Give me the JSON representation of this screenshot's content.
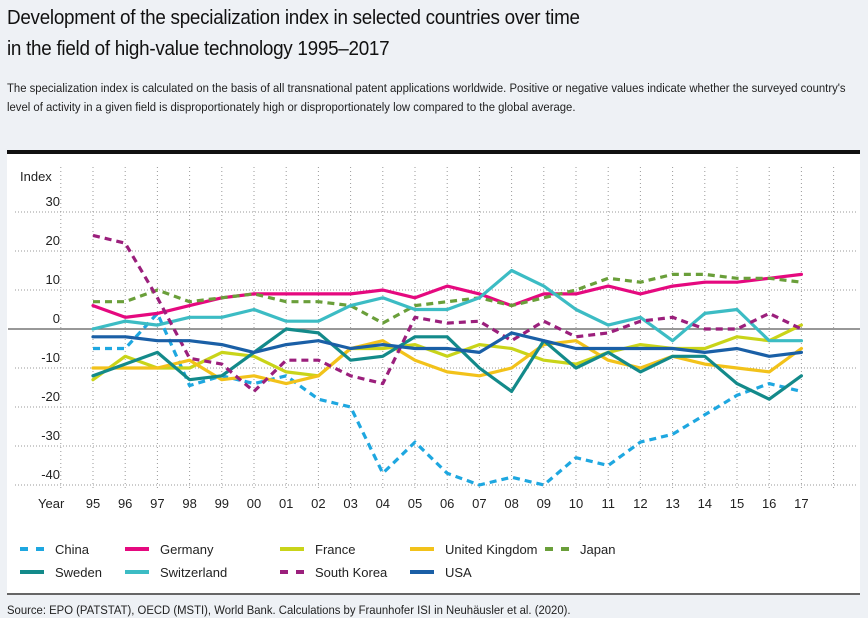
{
  "header": {
    "title_line1": "Development of the specialization index in selected countries over time",
    "title_line2": "in the field of high-value technology 1995–2017",
    "description": "The specialization index is calculated on the basis of all transnational patent applications worldwide. Positive or negative values indicate whether the surveyed country's level of activity in a given field is disproportionately high or disproportionately low compared to the global average."
  },
  "source": "Source: EPO (PATSTAT), OECD (MSTI), World Bank. Calculations by Fraunhofer ISI in Neuhäusler et al. (2020).",
  "chart_data": {
    "type": "line",
    "title": "Development of the specialization index in selected countries over time in the field of high-value technology 1995–2017",
    "xlabel": "Year",
    "ylabel": "Index",
    "x": [
      "95",
      "96",
      "97",
      "98",
      "99",
      "00",
      "01",
      "02",
      "03",
      "04",
      "05",
      "06",
      "07",
      "08",
      "09",
      "10",
      "11",
      "12",
      "13",
      "14",
      "15",
      "16",
      "17"
    ],
    "yticks": [
      30,
      20,
      10,
      0,
      -10,
      -20,
      -30,
      -40
    ],
    "ylim": [
      -40,
      30
    ],
    "grid": true,
    "legend_position": "bottom",
    "series": [
      {
        "name": "China",
        "color": "#1ea7e0",
        "dashed": true,
        "values": [
          -5,
          -5,
          4,
          -14.5,
          -12,
          -14,
          -12,
          -18,
          -20,
          -37,
          -29,
          -37,
          -40,
          -38,
          -40,
          -33,
          -35,
          -29,
          -27,
          -22,
          -17,
          -14,
          -16
        ]
      },
      {
        "name": "Germany",
        "color": "#e5097f",
        "dashed": false,
        "values": [
          6,
          3,
          4,
          6,
          8,
          9,
          9,
          9,
          9,
          10,
          8,
          11,
          9,
          6,
          9,
          9,
          11,
          9,
          11,
          12,
          12,
          13,
          14
        ]
      },
      {
        "name": "France",
        "color": "#c9d419",
        "dashed": false,
        "values": [
          -13,
          -7,
          -10,
          -10,
          -6,
          -7,
          -11,
          -12,
          -5,
          -5,
          -4,
          -7,
          -4,
          -5,
          -8,
          -9,
          -6,
          -4,
          -5,
          -5,
          -2,
          -3,
          1
        ]
      },
      {
        "name": "United Kingdom",
        "color": "#f2c21a",
        "dashed": false,
        "values": [
          -10,
          -10,
          -10,
          -8,
          -13,
          -12,
          -14,
          -12,
          -5,
          -3,
          -8,
          -11,
          -12,
          -10,
          -4,
          -3,
          -8,
          -10,
          -7,
          -9,
          -10,
          -11,
          -5
        ]
      },
      {
        "name": "Japan",
        "color": "#6a9f3a",
        "dashed": true,
        "values": [
          7,
          7,
          10,
          7,
          8,
          9,
          7,
          7,
          6,
          1.5,
          6,
          7,
          8,
          6,
          8,
          10,
          13,
          12,
          14,
          14,
          13,
          13,
          12
        ]
      },
      {
        "name": "Sweden",
        "color": "#138a8a",
        "dashed": false,
        "values": [
          -12,
          -9,
          -6,
          -13,
          -12,
          -6,
          0,
          -1,
          -8,
          -7,
          -2,
          -2,
          -10,
          -16,
          -3,
          -10,
          -6,
          -11,
          -7,
          -7,
          -14,
          -18,
          -12
        ]
      },
      {
        "name": "Switzerland",
        "color": "#3cbcc4",
        "dashed": false,
        "values": [
          0,
          2,
          1,
          3,
          3,
          5,
          2,
          2,
          6,
          8,
          5,
          5,
          8,
          15,
          11,
          5,
          1,
          3,
          -3,
          4,
          5,
          -3,
          -3
        ]
      },
      {
        "name": "South Korea",
        "color": "#9b1f7c",
        "dashed": true,
        "values": [
          24,
          22,
          8,
          -7.5,
          -9,
          -16,
          -8,
          -8,
          -12,
          -14,
          3,
          1.5,
          2,
          -3,
          2,
          -2,
          -1,
          2,
          3,
          0,
          0,
          4,
          0
        ]
      },
      {
        "name": "USA",
        "color": "#1a5fa6",
        "dashed": false,
        "values": [
          -2,
          -2,
          -3,
          -3,
          -4,
          -6,
          -4,
          -3,
          -5,
          -4,
          -5,
          -5,
          -6,
          -1,
          -3,
          -5,
          -5,
          -5,
          -5,
          -6,
          -5,
          -7,
          -6
        ]
      }
    ]
  },
  "legend": {
    "rows": [
      [
        "China",
        "Germany",
        "France",
        "United Kingdom",
        "Japan"
      ],
      [
        "Sweden",
        "Switzerland",
        "South Korea",
        "USA"
      ]
    ]
  }
}
